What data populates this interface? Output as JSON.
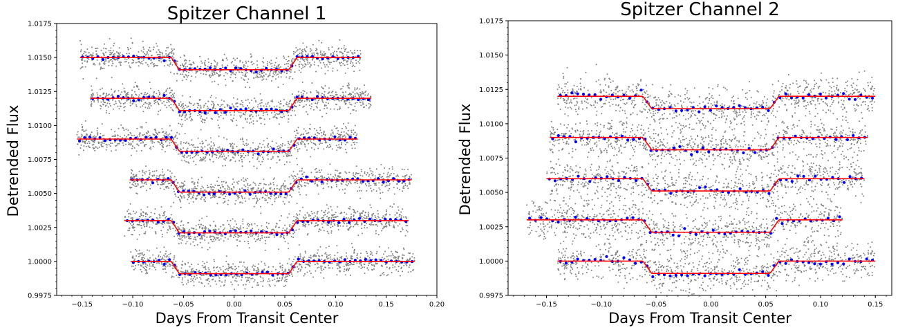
{
  "chart_data": [
    {
      "type": "scatter",
      "title": "Spitzer Channel 1",
      "xlabel": "Days From Transit Center",
      "ylabel": "Detrended Flux",
      "xlim": [
        -0.175,
        0.2
      ],
      "ylim": [
        0.9975,
        1.0175
      ],
      "xticks": [
        -0.15,
        -0.1,
        -0.05,
        0.0,
        0.05,
        0.1,
        0.15,
        0.2
      ],
      "xtick_labels": [
        "−0.15",
        "−0.10",
        "−0.05",
        "0.00",
        "0.05",
        "0.10",
        "0.15",
        "0.20"
      ],
      "yticks": [
        0.9975,
        1.0,
        1.0025,
        1.005,
        1.0075,
        1.01,
        1.0125,
        1.015,
        1.0175
      ],
      "ytick_labels": [
        "0.9975",
        "1.0000",
        "1.0025",
        "1.0050",
        "1.0075",
        "1.0100",
        "1.0125",
        "1.0150",
        "1.0175"
      ],
      "colors": {
        "raw": "#808080",
        "binned": "#0000ff",
        "model": "#ff0000"
      },
      "transit": {
        "depth": 0.0009,
        "ingress": -0.058,
        "egress": 0.058,
        "duration_edge": 0.004
      },
      "series": [
        {
          "offset": 1.015,
          "x_range": [
            -0.152,
            0.125
          ],
          "scatter": 0.00045
        },
        {
          "offset": 1.012,
          "x_range": [
            -0.142,
            0.135
          ],
          "scatter": 0.00045
        },
        {
          "offset": 1.009,
          "x_range": [
            -0.155,
            0.122
          ],
          "scatter": 0.00045
        },
        {
          "offset": 1.006,
          "x_range": [
            -0.103,
            0.175
          ],
          "scatter": 0.00045
        },
        {
          "offset": 1.003,
          "x_range": [
            -0.108,
            0.172
          ],
          "scatter": 0.00045
        },
        {
          "offset": 1.0,
          "x_range": [
            -0.102,
            0.178
          ],
          "scatter": 0.00045
        }
      ]
    },
    {
      "type": "scatter",
      "title": "Spitzer Channel 2",
      "xlabel": "Days From Transit Center",
      "ylabel": "Detrended Flux",
      "xlim": [
        -0.185,
        0.165
      ],
      "ylim": [
        0.9975,
        1.0175
      ],
      "xticks": [
        -0.15,
        -0.1,
        -0.05,
        0.0,
        0.05,
        0.1,
        0.15
      ],
      "xtick_labels": [
        "−0.15",
        "−0.10",
        "−0.05",
        "0.00",
        "0.05",
        "0.10",
        "0.15"
      ],
      "yticks": [
        0.9975,
        1.0,
        1.0025,
        1.005,
        1.0075,
        1.01,
        1.0125,
        1.015,
        1.0175
      ],
      "ytick_labels": [
        "0.9975",
        "1.0000",
        "1.0025",
        "1.0050",
        "1.0075",
        "1.0100",
        "1.0125",
        "1.0150",
        "1.0175"
      ],
      "colors": {
        "raw": "#808080",
        "binned": "#0000ff",
        "model": "#ff0000"
      },
      "transit": {
        "depth": 0.0009,
        "ingress": -0.058,
        "egress": 0.058,
        "duration_edge": 0.004
      },
      "series": [
        {
          "offset": 1.012,
          "x_range": [
            -0.14,
            0.15
          ],
          "scatter": 0.0007
        },
        {
          "offset": 1.009,
          "x_range": [
            -0.147,
            0.143
          ],
          "scatter": 0.0007
        },
        {
          "offset": 1.006,
          "x_range": [
            -0.15,
            0.14
          ],
          "scatter": 0.0007
        },
        {
          "offset": 1.003,
          "x_range": [
            -0.168,
            0.12
          ],
          "scatter": 0.0007
        },
        {
          "offset": 1.0,
          "x_range": [
            -0.14,
            0.15
          ],
          "scatter": 0.0007
        }
      ]
    }
  ]
}
